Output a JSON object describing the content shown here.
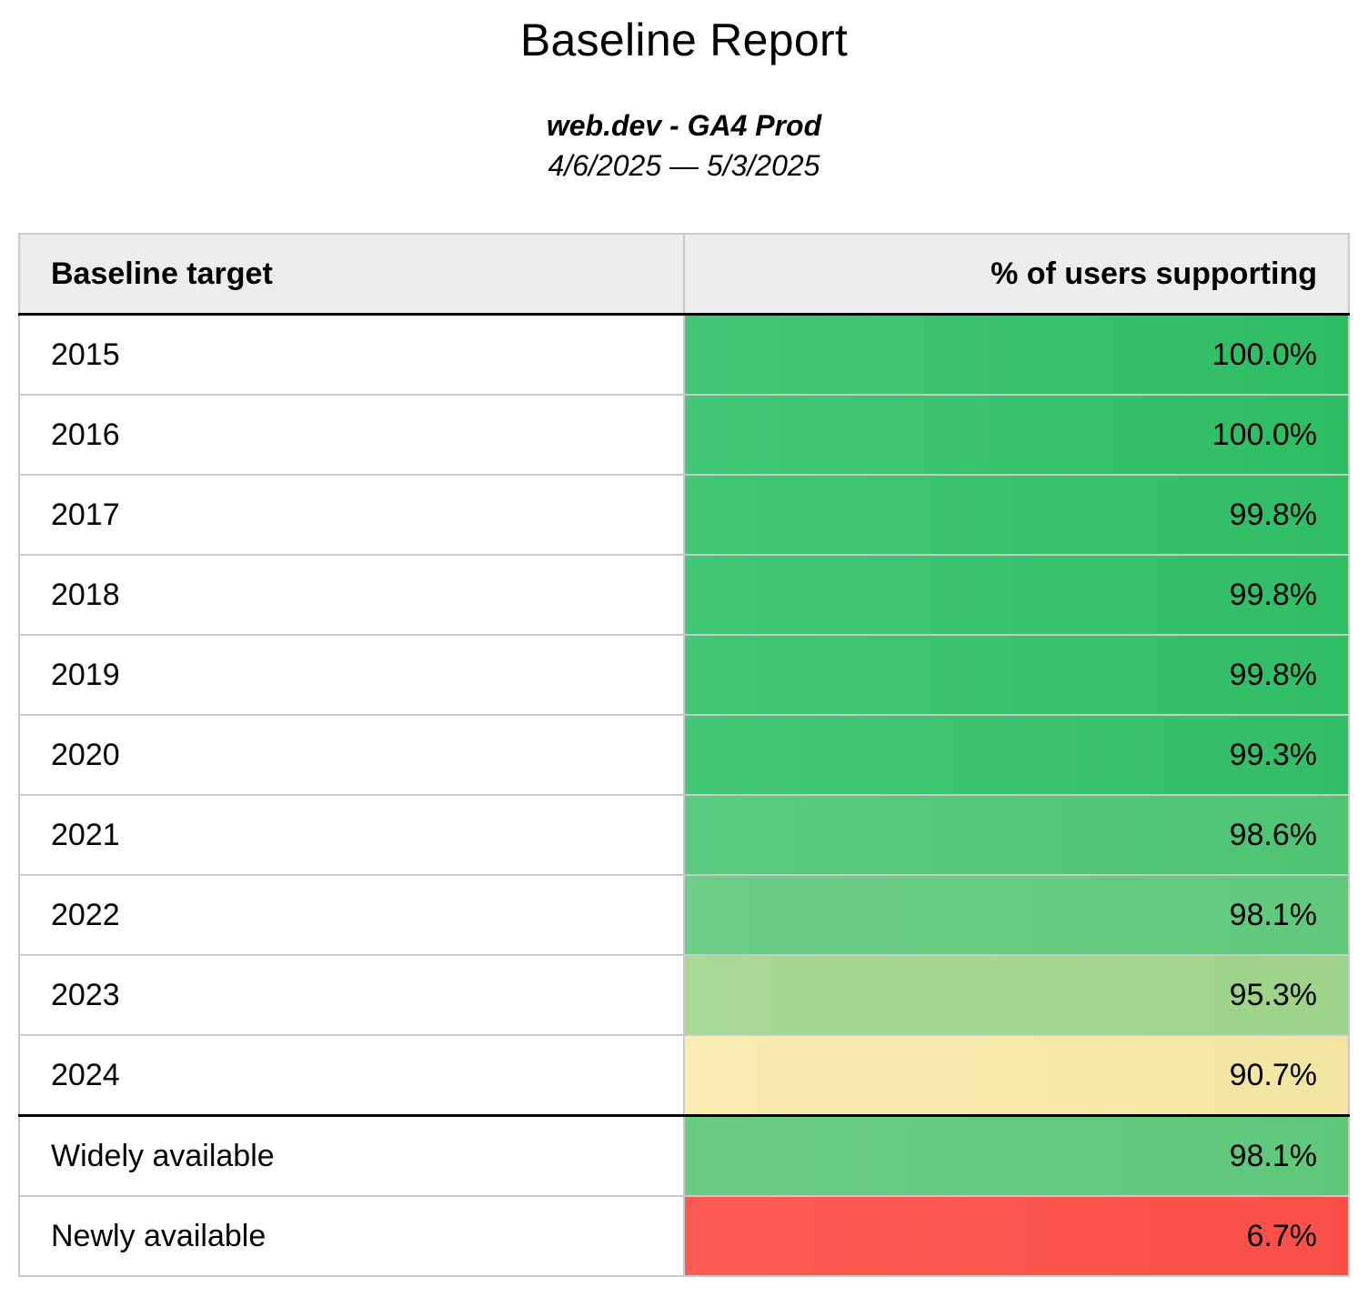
{
  "report": {
    "title": "Baseline Report",
    "subtitle": "web.dev - GA4 Prod",
    "date_range": "4/6/2025 — 5/3/2025"
  },
  "table": {
    "header": {
      "target_label": "Baseline target",
      "value_label": "% of users supporting"
    },
    "rows": [
      {
        "target": "2015",
        "value": "100.0%",
        "group": "year",
        "color_from": "#43c776",
        "color_to": "#2ebd63"
      },
      {
        "target": "2016",
        "value": "100.0%",
        "group": "year",
        "color_from": "#43c776",
        "color_to": "#2ebd63"
      },
      {
        "target": "2017",
        "value": "99.8%",
        "group": "year",
        "color_from": "#42c775",
        "color_to": "#30be65"
      },
      {
        "target": "2018",
        "value": "99.8%",
        "group": "year",
        "color_from": "#42c775",
        "color_to": "#30be65"
      },
      {
        "target": "2019",
        "value": "99.8%",
        "group": "year",
        "color_from": "#42c775",
        "color_to": "#30be65"
      },
      {
        "target": "2020",
        "value": "99.3%",
        "group": "year",
        "color_from": "#44c775",
        "color_to": "#32be66"
      },
      {
        "target": "2021",
        "value": "98.6%",
        "group": "year",
        "color_from": "#5dca80",
        "color_to": "#4ec473"
      },
      {
        "target": "2022",
        "value": "98.1%",
        "group": "year",
        "color_from": "#6ecd87",
        "color_to": "#60c97c"
      },
      {
        "target": "2023",
        "value": "95.3%",
        "group": "year",
        "color_from": "#a9d994",
        "color_to": "#9dd489"
      },
      {
        "target": "2024",
        "value": "90.7%",
        "group": "year",
        "color_from": "#f9ebb1",
        "color_to": "#f2e4a0"
      },
      {
        "target": "Widely available",
        "value": "98.1%",
        "group": "summary",
        "color_from": "#6bcc84",
        "color_to": "#5ec87a"
      },
      {
        "target": "Newly available",
        "value": "6.7%",
        "group": "summary",
        "color_from": "#fc5b53",
        "color_to": "#f94f48"
      }
    ]
  },
  "colors": {
    "header_bg": "#ececec",
    "row_border": "#c9c9c9",
    "section_border": "#000000",
    "text": "#000000",
    "page_bg": "#ffffff"
  },
  "chart_data": {
    "type": "table",
    "title": "Baseline Report",
    "subtitle": "web.dev - GA4 Prod",
    "date_range": "4/6/2025 — 5/3/2025",
    "columns": [
      "Baseline target",
      "% of users supporting"
    ],
    "categories": [
      "2015",
      "2016",
      "2017",
      "2018",
      "2019",
      "2020",
      "2021",
      "2022",
      "2023",
      "2024",
      "Widely available",
      "Newly available"
    ],
    "values": [
      100.0,
      100.0,
      99.8,
      99.8,
      99.8,
      99.3,
      98.6,
      98.1,
      95.3,
      90.7,
      98.1,
      6.7
    ],
    "value_unit": "%",
    "layout_hints": {
      "value_column_alignment": "right",
      "heatmap": "green (high) → yellow (mid) → red (low) fill on value column",
      "section_break_after": "2024"
    }
  }
}
